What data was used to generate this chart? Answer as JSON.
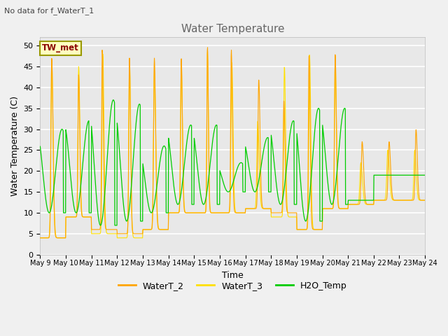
{
  "title": "Water Temperature",
  "subtitle": "No data for f_WaterT_1",
  "xlabel": "Time",
  "ylabel": "Water Temperature (C)",
  "ylim": [
    0,
    52
  ],
  "yticks": [
    0,
    5,
    10,
    15,
    20,
    25,
    30,
    35,
    40,
    45,
    50
  ],
  "colors": {
    "WaterT_2": "#FFA500",
    "WaterT_3": "#FFE000",
    "H2O_Temp": "#00CC00"
  },
  "bg_color": "#E8E8E8",
  "fig_bg": "#F0F0F0",
  "annotation_box": {
    "text": "TW_met",
    "text_color": "#8B0000",
    "box_color": "#FFFFC0",
    "edge_color": "#999900"
  },
  "x_tick_days": [
    9,
    10,
    11,
    12,
    13,
    14,
    15,
    16,
    17,
    18,
    19,
    20,
    21,
    22,
    23,
    24
  ]
}
